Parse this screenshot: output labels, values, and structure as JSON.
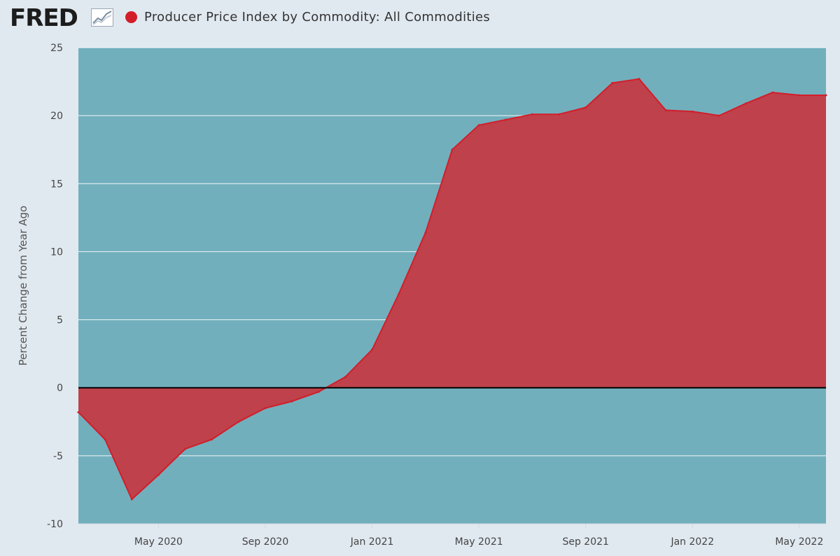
{
  "header": {
    "logo_text": "FRED",
    "logo_icon": "line-graph-icon",
    "series_title": "Producer Price Index by Commodity: All Commodities"
  },
  "colors": {
    "plot_background": "#72afbd",
    "series": "#d21e2a",
    "area_fill": "#c03d47",
    "gridline": "#ffffff",
    "zero_line": "#000000"
  },
  "chart_data": {
    "type": "area",
    "title": "Producer Price Index by Commodity: All Commodities",
    "ylabel": "Percent Change from Year Ago",
    "xlabel": "",
    "ylim": [
      -10,
      25
    ],
    "yticks": [
      25,
      20,
      15,
      10,
      5,
      0,
      -5,
      -10
    ],
    "xlim": [
      "2020-02",
      "2022-06"
    ],
    "xticks": [
      {
        "label": "May 2020",
        "date": "2020-05"
      },
      {
        "label": "Sep 2020",
        "date": "2020-09"
      },
      {
        "label": "Jan 2021",
        "date": "2021-01"
      },
      {
        "label": "May 2021",
        "date": "2021-05"
      },
      {
        "label": "Sep 2021",
        "date": "2021-09"
      },
      {
        "label": "Jan 2022",
        "date": "2022-01"
      },
      {
        "label": "May 2022",
        "date": "2022-05"
      }
    ],
    "grid": true,
    "series": [
      {
        "name": "Producer Price Index by Commodity: All Commodities",
        "x": [
          "2020-02",
          "2020-03",
          "2020-04",
          "2020-05",
          "2020-06",
          "2020-07",
          "2020-08",
          "2020-09",
          "2020-10",
          "2020-11",
          "2020-12",
          "2021-01",
          "2021-02",
          "2021-03",
          "2021-04",
          "2021-05",
          "2021-06",
          "2021-07",
          "2021-08",
          "2021-09",
          "2021-10",
          "2021-11",
          "2021-12",
          "2022-01",
          "2022-02",
          "2022-03",
          "2022-04",
          "2022-05",
          "2022-06"
        ],
        "values": [
          -1.8,
          -3.8,
          -8.2,
          -6.4,
          -4.5,
          -3.8,
          -2.5,
          -1.5,
          -1.0,
          -0.3,
          0.8,
          2.8,
          6.9,
          11.4,
          17.5,
          19.3,
          19.7,
          20.1,
          20.1,
          20.6,
          22.4,
          22.7,
          20.4,
          20.3,
          20.0,
          20.9,
          21.7,
          21.5,
          21.5
        ]
      }
    ]
  }
}
